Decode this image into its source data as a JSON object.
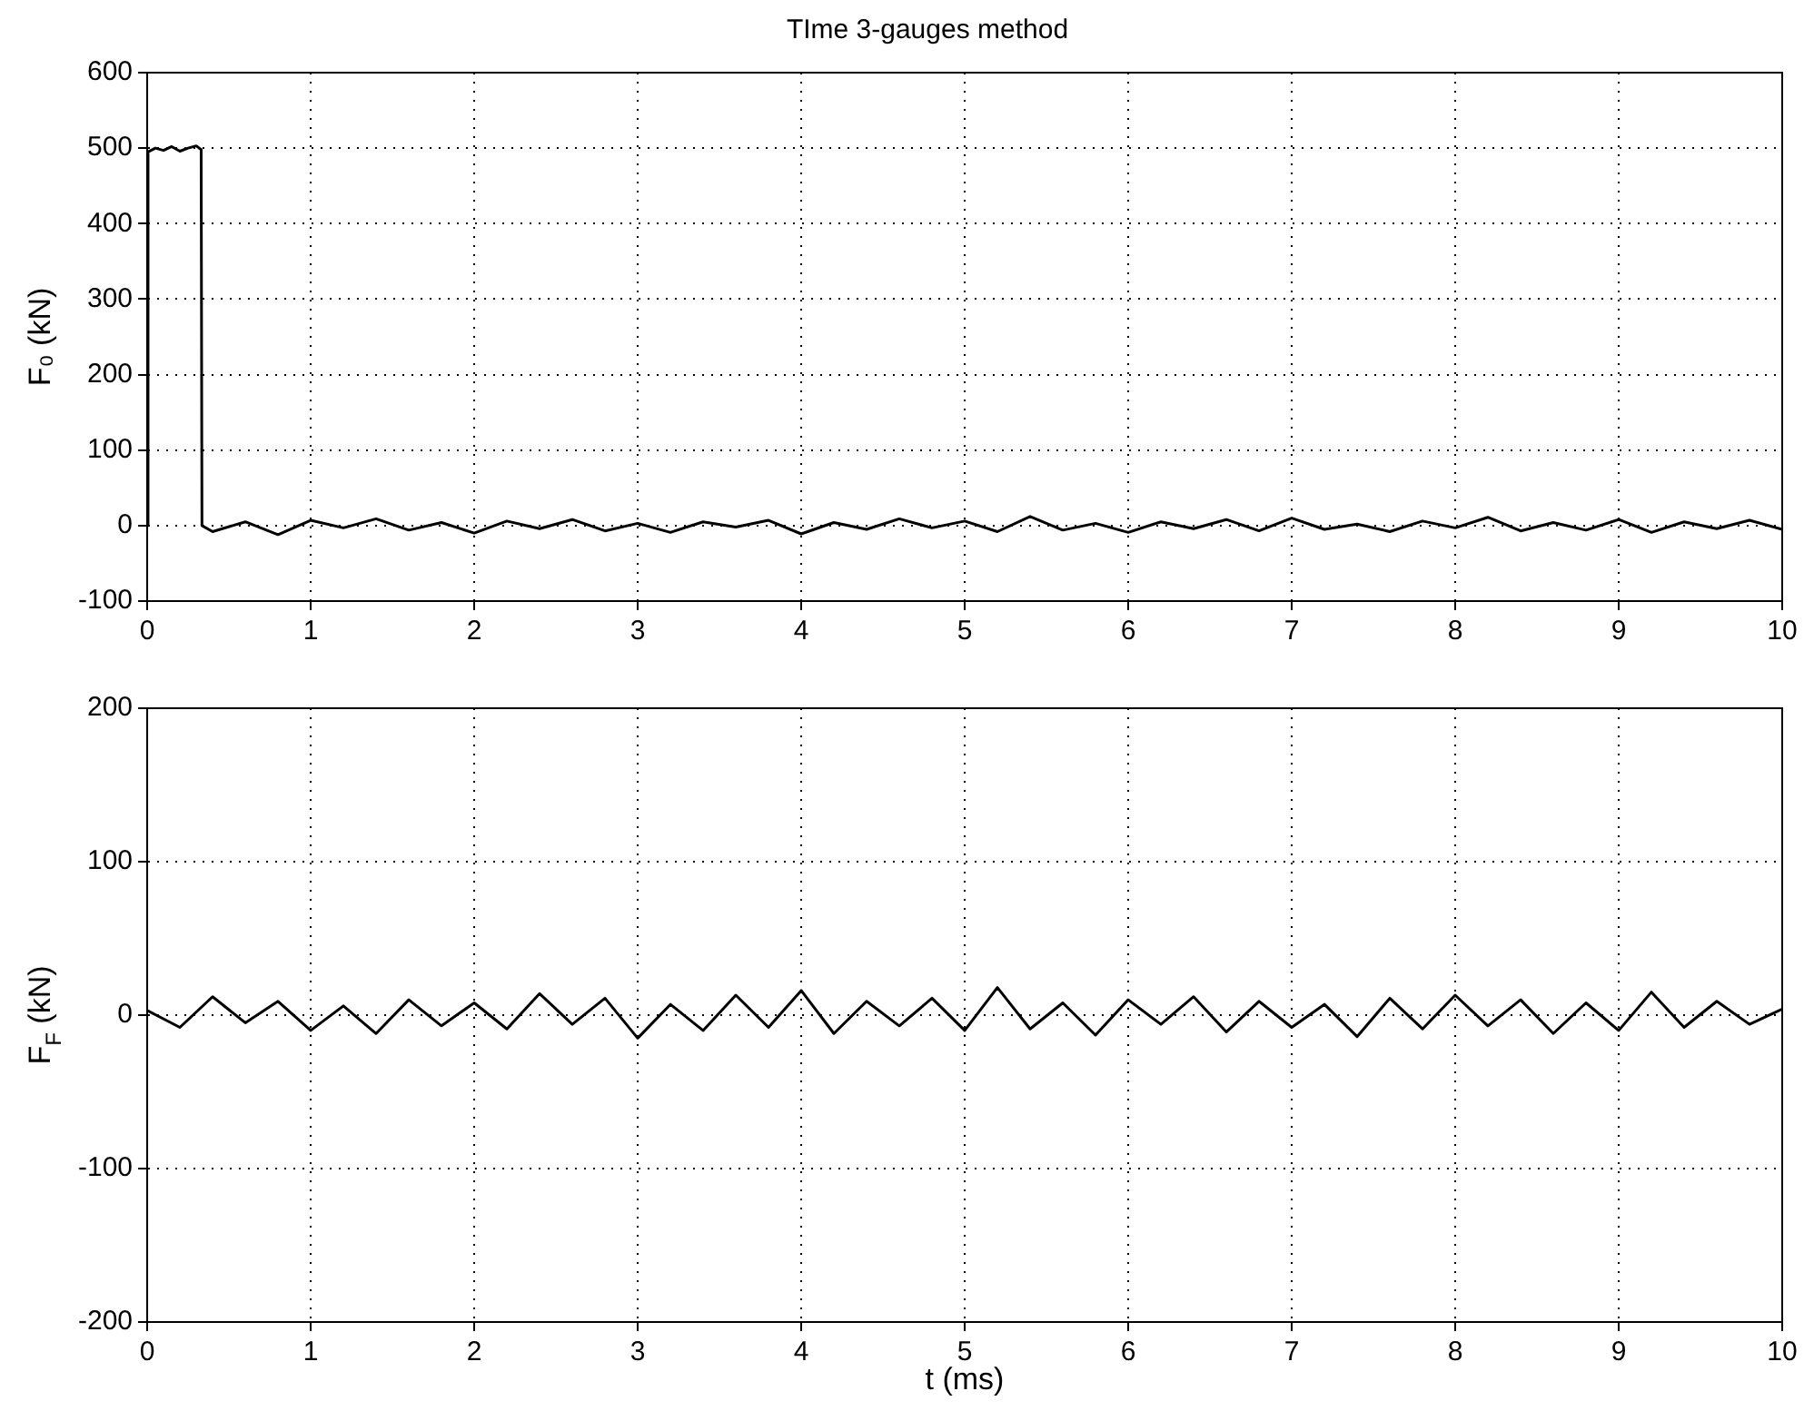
{
  "chart_data": [
    {
      "type": "line",
      "title": "TIme 3-gauges method",
      "ylabel": "F₀ (kN)",
      "xlim": [
        0,
        10
      ],
      "xticks": [
        0,
        1,
        2,
        3,
        4,
        5,
        6,
        7,
        8,
        9,
        10
      ],
      "ylim": [
        -100,
        600
      ],
      "yticks": [
        -100,
        0,
        100,
        200,
        300,
        400,
        500,
        600
      ],
      "grid": true,
      "legend": false,
      "marker": "none",
      "line_style": "solid",
      "series": [
        {
          "color": "#000000",
          "x": [
            0,
            0.005,
            0.05,
            0.1,
            0.15,
            0.2,
            0.25,
            0.3,
            0.33,
            0.335,
            0.4,
            0.6,
            0.8,
            1,
            1.2,
            1.4,
            1.6,
            1.8,
            2,
            2.2,
            2.4,
            2.6,
            2.8,
            3,
            3.2,
            3.4,
            3.6,
            3.8,
            4,
            4.2,
            4.4,
            4.6,
            4.8,
            5,
            5.2,
            5.4,
            5.6,
            5.8,
            6,
            6.2,
            6.4,
            6.6,
            6.8,
            7,
            7.2,
            7.4,
            7.6,
            7.8,
            8,
            8.2,
            8.4,
            8.6,
            8.8,
            9,
            9.2,
            9.4,
            9.6,
            9.8,
            10
          ],
          "values": [
            0,
            495,
            500,
            497,
            502,
            496,
            500,
            503,
            498,
            0,
            -8,
            5,
            -12,
            7,
            -3,
            9,
            -6,
            4,
            -10,
            6,
            -4,
            8,
            -7,
            3,
            -9,
            5,
            -2,
            7,
            -11,
            4,
            -5,
            9,
            -3,
            6,
            -8,
            12,
            -6,
            3,
            -9,
            5,
            -4,
            8,
            -7,
            10,
            -5,
            2,
            -8,
            6,
            -3,
            11,
            -7,
            4,
            -6,
            8,
            -9,
            5,
            -4,
            7,
            -5
          ]
        }
      ]
    },
    {
      "type": "line",
      "ylabel": "F$_{F}$ (kN)",
      "xlabel": "t (ms)",
      "xlim": [
        0,
        10
      ],
      "xticks": [
        0,
        1,
        2,
        3,
        4,
        5,
        6,
        7,
        8,
        9,
        10
      ],
      "ylim": [
        -200,
        200
      ],
      "yticks": [
        -200,
        -100,
        0,
        100,
        200
      ],
      "grid": true,
      "legend": false,
      "marker": "none",
      "line_style": "solid",
      "series": [
        {
          "color": "#000000",
          "x": [
            0,
            0.2,
            0.4,
            0.6,
            0.8,
            1,
            1.2,
            1.4,
            1.6,
            1.8,
            2,
            2.2,
            2.4,
            2.6,
            2.8,
            3,
            3.2,
            3.4,
            3.6,
            3.8,
            4,
            4.2,
            4.4,
            4.6,
            4.8,
            5,
            5.2,
            5.4,
            5.6,
            5.8,
            6,
            6.2,
            6.4,
            6.6,
            6.8,
            7,
            7.2,
            7.4,
            7.6,
            7.8,
            8,
            8.2,
            8.4,
            8.6,
            8.8,
            9,
            9.2,
            9.4,
            9.6,
            9.8,
            10
          ],
          "values": [
            3,
            -8,
            12,
            -5,
            9,
            -10,
            6,
            -12,
            10,
            -7,
            8,
            -9,
            14,
            -6,
            11,
            -15,
            7,
            -10,
            13,
            -8,
            16,
            -12,
            9,
            -7,
            11,
            -10,
            18,
            -9,
            8,
            -13,
            10,
            -6,
            12,
            -11,
            9,
            -8,
            7,
            -14,
            11,
            -9,
            13,
            -7,
            10,
            -12,
            8,
            -10,
            15,
            -8,
            9,
            -6,
            4
          ]
        }
      ]
    }
  ]
}
